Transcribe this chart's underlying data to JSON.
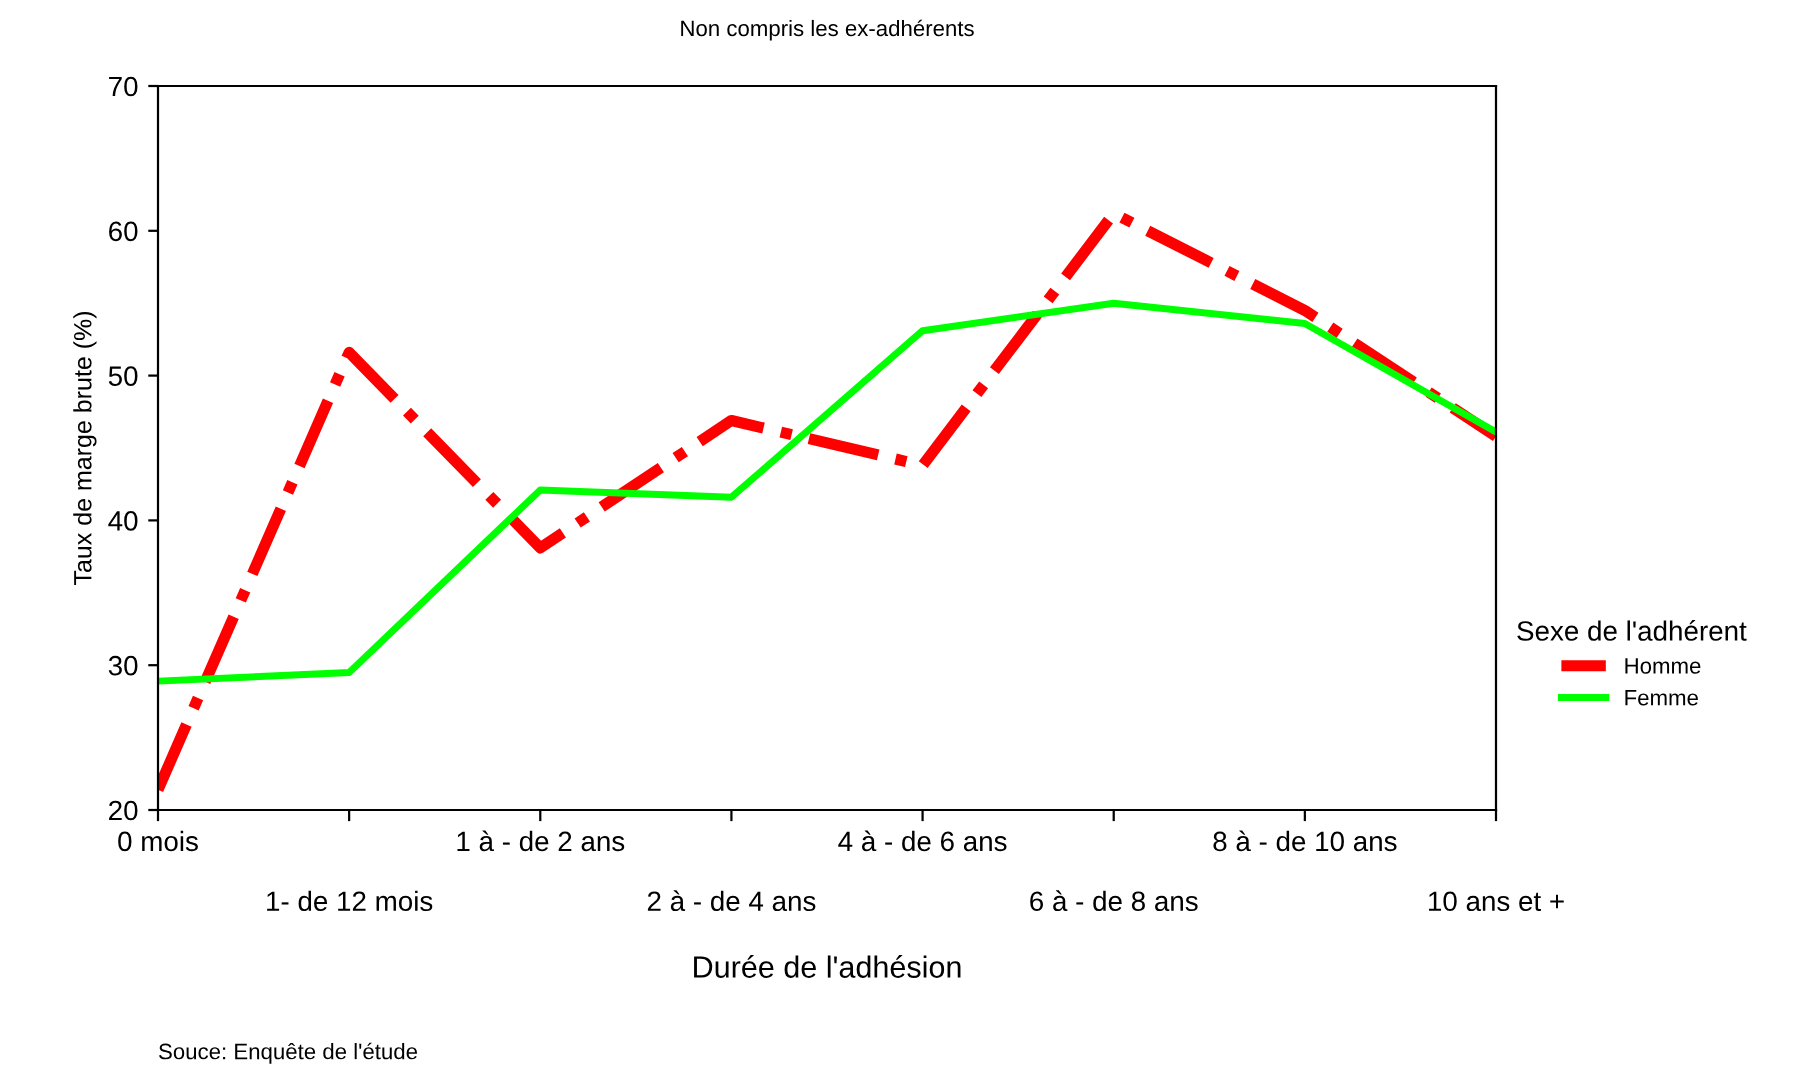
{
  "chart_data": {
    "type": "line",
    "title": "Non compris les ex-adhérents",
    "xlabel": "Durée de l'adhésion",
    "ylabel": "Taux de marge brute (%)",
    "legend_title": "Sexe de l'adhérent",
    "categories": [
      "0 mois",
      "1- de 12 mois",
      "1 à - de 2 ans",
      "2 à - de 4 ans",
      "4 à - de 6 ans",
      "6 à - de 8 ans",
      "8 à - de 10 ans",
      "10 ans et +"
    ],
    "series": [
      {
        "name": "Homme",
        "color": "#ff0000",
        "line_style": "dashdot",
        "values": [
          21.4,
          51.6,
          38.1,
          46.9,
          43.8,
          61.2,
          54.5,
          45.8
        ]
      },
      {
        "name": "Femme",
        "color": "#00ff00",
        "line_style": "solid",
        "values": [
          28.9,
          29.5,
          42.1,
          41.6,
          53.1,
          55.0,
          53.6,
          46.1
        ]
      }
    ],
    "ylim": [
      20,
      70
    ],
    "yticks": [
      20,
      30,
      40,
      50,
      60,
      70
    ],
    "grid": false,
    "legend": "right",
    "marker": "none",
    "annotations": [
      "Souce: Enquête de l'étude"
    ]
  }
}
